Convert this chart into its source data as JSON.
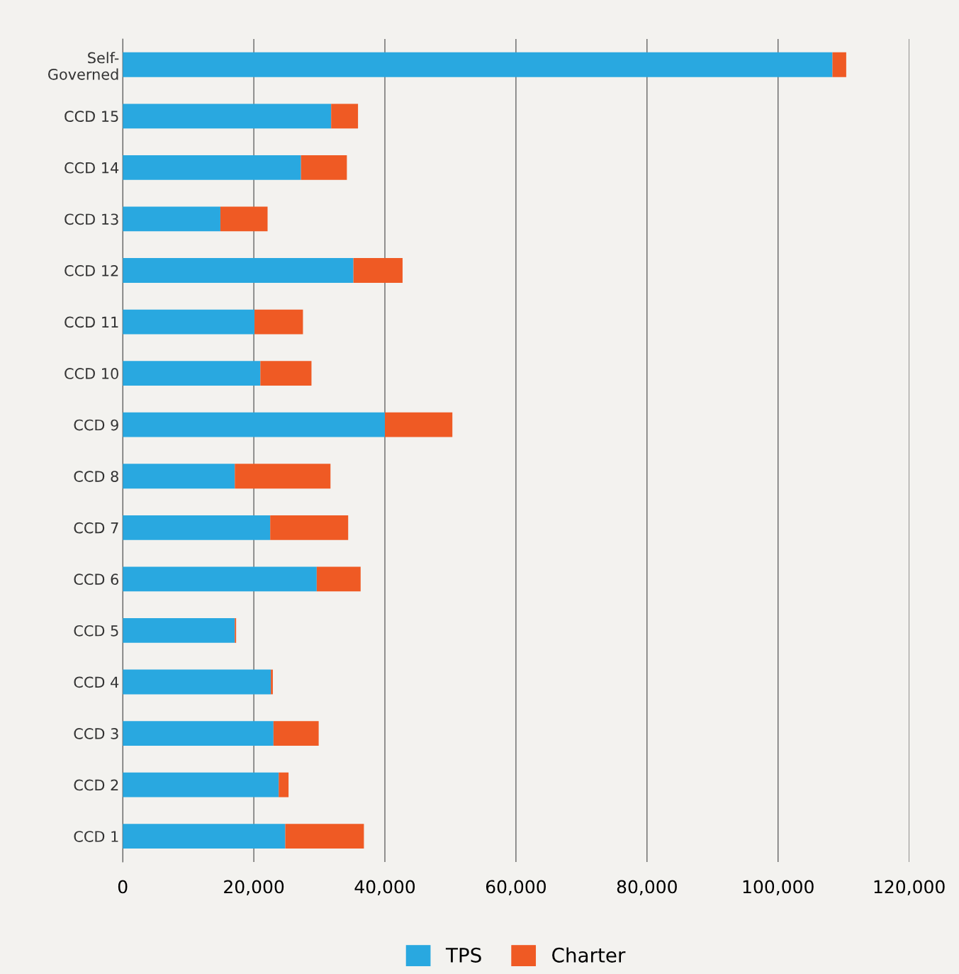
{
  "chart_data": {
    "type": "bar",
    "orientation": "horizontal",
    "stacked": true,
    "categories": [
      "Self-\nGoverned",
      "CCD 15",
      "CCD 14",
      "CCD 13",
      "CCD 12",
      "CCD 11",
      "CCD 10",
      "CCD 9",
      "CCD 8",
      "CCD 7",
      "CCD 6",
      "CCD 5",
      "CCD 4",
      "CCD 3",
      "CCD 2",
      "CCD 1"
    ],
    "series": [
      {
        "name": "TPS",
        "color": "#29a8e0",
        "values": [
          108300,
          31800,
          27200,
          14900,
          35200,
          20100,
          21000,
          40000,
          17100,
          22500,
          29600,
          17100,
          22600,
          23000,
          23800,
          24800
        ]
      },
      {
        "name": "Charter",
        "color": "#ef5a24",
        "values": [
          2100,
          4100,
          7000,
          7200,
          7500,
          7400,
          7800,
          10300,
          14600,
          11900,
          6700,
          200,
          300,
          6900,
          1500,
          12000
        ]
      }
    ],
    "xlim": [
      0,
      120000
    ],
    "xticks": [
      {
        "value": 0,
        "label": "0"
      },
      {
        "value": 20000,
        "label": "20,000"
      },
      {
        "value": 40000,
        "label": "40,000"
      },
      {
        "value": 60000,
        "label": "60,000"
      },
      {
        "value": 80000,
        "label": "80,000"
      },
      {
        "value": 100000,
        "label": "100,000"
      },
      {
        "value": 120000,
        "label": "120,000"
      }
    ],
    "grid": "x",
    "legend": "bottom"
  }
}
